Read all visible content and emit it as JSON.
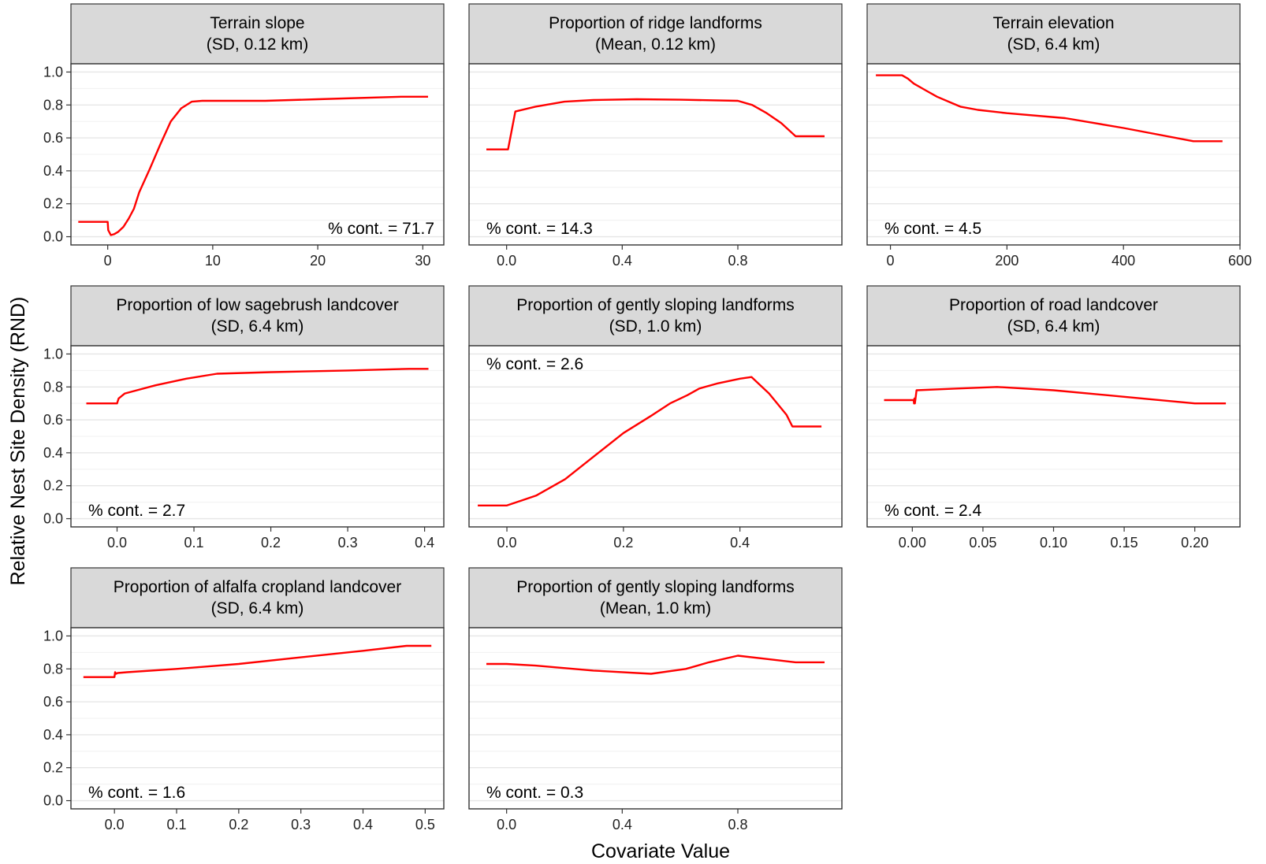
{
  "figure": {
    "ylabel": "Relative Nest Site Density (RND)",
    "xlabel": "Covariate Value"
  },
  "chart_data": [
    {
      "type": "line",
      "title_line1": "Terrain slope",
      "title_line2": "(SD, 0.12 km)",
      "annotation": "% cont. = 71.7",
      "annotation_pos": "bottom-right",
      "xlim": [
        -3.5,
        32
      ],
      "ylim": [
        -0.05,
        1.05
      ],
      "xticks": [
        0,
        10,
        20,
        30
      ],
      "xtick_labels": [
        "0",
        "10",
        "20",
        "30"
      ],
      "yticks": [
        0.0,
        0.2,
        0.4,
        0.6,
        0.8,
        1.0
      ],
      "ytick_labels": [
        "0.0",
        "0.2",
        "0.4",
        "0.6",
        "0.8",
        "1.0"
      ],
      "show_yticks": true,
      "x": [
        -2.8,
        0,
        0.05,
        0.3,
        0.6,
        1.0,
        1.5,
        2.0,
        2.5,
        3.0,
        4.0,
        5.0,
        6.0,
        7.0,
        8.0,
        9.0,
        15.0,
        20.0,
        28.0,
        30.5
      ],
      "y": [
        0.09,
        0.09,
        0.04,
        0.01,
        0.015,
        0.03,
        0.06,
        0.11,
        0.17,
        0.27,
        0.41,
        0.56,
        0.7,
        0.78,
        0.82,
        0.825,
        0.825,
        0.835,
        0.85,
        0.85
      ],
      "color": "#ff0000"
    },
    {
      "type": "line",
      "title_line1": "Proportion of ridge landforms",
      "title_line2": "(Mean, 0.12 km)",
      "annotation": "% cont. = 14.3",
      "annotation_pos": "bottom-left",
      "xlim": [
        -0.13,
        1.16
      ],
      "ylim": [
        -0.05,
        1.05
      ],
      "xticks": [
        0.0,
        0.4,
        0.8
      ],
      "xtick_labels": [
        "0.0",
        "0.4",
        "0.8"
      ],
      "yticks": [
        0.0,
        0.2,
        0.4,
        0.6,
        0.8,
        1.0
      ],
      "ytick_labels": [
        "0.0",
        "0.2",
        "0.4",
        "0.6",
        "0.8",
        "1.0"
      ],
      "show_yticks": false,
      "x": [
        -0.07,
        0.005,
        0.03,
        0.1,
        0.2,
        0.3,
        0.45,
        0.6,
        0.8,
        0.85,
        0.9,
        0.95,
        1.0,
        1.1
      ],
      "y": [
        0.53,
        0.53,
        0.76,
        0.79,
        0.82,
        0.83,
        0.835,
        0.832,
        0.825,
        0.8,
        0.75,
        0.69,
        0.61,
        0.61
      ],
      "color": "#ff0000"
    },
    {
      "type": "line",
      "title_line1": "Terrain elevation",
      "title_line2": "(SD, 6.4 km)",
      "annotation": "% cont. =  4.5",
      "annotation_pos": "bottom-left",
      "xlim": [
        -40,
        600
      ],
      "ylim": [
        -0.05,
        1.05
      ],
      "xticks": [
        0,
        200,
        400,
        600
      ],
      "xtick_labels": [
        "0",
        "200",
        "400",
        "600"
      ],
      "yticks": [
        0.0,
        0.2,
        0.4,
        0.6,
        0.8,
        1.0
      ],
      "ytick_labels": [
        "0.0",
        "0.2",
        "0.4",
        "0.6",
        "0.8",
        "1.0"
      ],
      "show_yticks": false,
      "x": [
        -25,
        20,
        30,
        40,
        60,
        80,
        100,
        120,
        150,
        200,
        300,
        400,
        520,
        570
      ],
      "y": [
        0.98,
        0.98,
        0.96,
        0.93,
        0.89,
        0.85,
        0.82,
        0.79,
        0.77,
        0.75,
        0.72,
        0.66,
        0.58,
        0.58
      ],
      "color": "#ff0000"
    },
    {
      "type": "line",
      "title_line1": "Proportion of low sagebrush landcover",
      "title_line2": "(SD, 6.4 km)",
      "annotation": "% cont. =  2.7",
      "annotation_pos": "bottom-left",
      "xlim": [
        -0.06,
        0.425
      ],
      "ylim": [
        -0.05,
        1.05
      ],
      "xticks": [
        0.0,
        0.1,
        0.2,
        0.3,
        0.4
      ],
      "xtick_labels": [
        "0.0",
        "0.1",
        "0.2",
        "0.3",
        "0.4"
      ],
      "yticks": [
        0.0,
        0.2,
        0.4,
        0.6,
        0.8,
        1.0
      ],
      "ytick_labels": [
        "0.0",
        "0.2",
        "0.4",
        "0.6",
        "0.8",
        "1.0"
      ],
      "show_yticks": true,
      "x": [
        -0.04,
        0.0,
        0.002,
        0.01,
        0.05,
        0.09,
        0.13,
        0.2,
        0.3,
        0.38,
        0.405
      ],
      "y": [
        0.7,
        0.7,
        0.73,
        0.76,
        0.81,
        0.85,
        0.88,
        0.89,
        0.9,
        0.91,
        0.91
      ],
      "color": "#ff0000"
    },
    {
      "type": "line",
      "title_line1": "Proportion of gently sloping landforms",
      "title_line2": "(SD, 1.0 km)",
      "annotation": "% cont. =  2.6",
      "annotation_pos": "top-left",
      "xlim": [
        -0.065,
        0.575
      ],
      "ylim": [
        -0.05,
        1.05
      ],
      "xticks": [
        0.0,
        0.2,
        0.4
      ],
      "xtick_labels": [
        "0.0",
        "0.2",
        "0.4"
      ],
      "yticks": [
        0.0,
        0.2,
        0.4,
        0.6,
        0.8,
        1.0
      ],
      "ytick_labels": [
        "0.0",
        "0.2",
        "0.4",
        "0.6",
        "0.8",
        "1.0"
      ],
      "show_yticks": false,
      "x": [
        -0.05,
        0.0,
        0.05,
        0.1,
        0.15,
        0.2,
        0.25,
        0.28,
        0.31,
        0.33,
        0.36,
        0.4,
        0.42,
        0.45,
        0.48,
        0.49,
        0.54
      ],
      "y": [
        0.08,
        0.08,
        0.14,
        0.24,
        0.38,
        0.52,
        0.63,
        0.7,
        0.75,
        0.79,
        0.82,
        0.85,
        0.86,
        0.76,
        0.63,
        0.56,
        0.56
      ],
      "color": "#ff0000"
    },
    {
      "type": "line",
      "title_line1": "Proportion of road landcover",
      "title_line2": "(SD, 6.4 km)",
      "annotation": "% cont. =  2.4",
      "annotation_pos": "bottom-left",
      "xlim": [
        -0.032,
        0.232
      ],
      "ylim": [
        -0.05,
        1.05
      ],
      "xticks": [
        0.0,
        0.05,
        0.1,
        0.15,
        0.2
      ],
      "xtick_labels": [
        "0.00",
        "0.05",
        "0.10",
        "0.15",
        "0.20"
      ],
      "yticks": [
        0.0,
        0.2,
        0.4,
        0.6,
        0.8,
        1.0
      ],
      "ytick_labels": [
        "0.0",
        "0.2",
        "0.4",
        "0.6",
        "0.8",
        "1.0"
      ],
      "show_yticks": false,
      "x": [
        -0.02,
        0.001,
        0.0012,
        0.0015,
        0.0018,
        0.003,
        0.03,
        0.06,
        0.1,
        0.15,
        0.2,
        0.222
      ],
      "y": [
        0.72,
        0.72,
        0.7,
        0.73,
        0.7,
        0.78,
        0.79,
        0.8,
        0.78,
        0.74,
        0.7,
        0.7
      ],
      "color": "#ff0000"
    },
    {
      "type": "line",
      "title_line1": "Proportion of alfalfa cropland landcover",
      "title_line2": "(SD, 6.4 km)",
      "annotation": "% cont. =  1.6",
      "annotation_pos": "bottom-left",
      "xlim": [
        -0.07,
        0.53
      ],
      "ylim": [
        -0.05,
        1.05
      ],
      "xticks": [
        0.0,
        0.1,
        0.2,
        0.3,
        0.4,
        0.5
      ],
      "xtick_labels": [
        "0.0",
        "0.1",
        "0.2",
        "0.3",
        "0.4",
        "0.5"
      ],
      "yticks": [
        0.0,
        0.2,
        0.4,
        0.6,
        0.8,
        1.0
      ],
      "ytick_labels": [
        "0.0",
        "0.2",
        "0.4",
        "0.6",
        "0.8",
        "1.0"
      ],
      "show_yticks": true,
      "x": [
        -0.05,
        0.0,
        0.001,
        0.003,
        0.005,
        0.02,
        0.1,
        0.2,
        0.3,
        0.4,
        0.47,
        0.51
      ],
      "y": [
        0.75,
        0.75,
        0.78,
        0.77,
        0.775,
        0.78,
        0.8,
        0.83,
        0.87,
        0.91,
        0.94,
        0.94
      ],
      "color": "#ff0000"
    },
    {
      "type": "line",
      "title_line1": "Proportion of gently sloping landforms",
      "title_line2": "(Mean, 1.0 km)",
      "annotation": "% cont. =  0.3",
      "annotation_pos": "bottom-left",
      "xlim": [
        -0.13,
        1.16
      ],
      "ylim": [
        -0.05,
        1.05
      ],
      "xticks": [
        0.0,
        0.4,
        0.8
      ],
      "xtick_labels": [
        "0.0",
        "0.4",
        "0.8"
      ],
      "yticks": [
        0.0,
        0.2,
        0.4,
        0.6,
        0.8,
        1.0
      ],
      "ytick_labels": [
        "0.0",
        "0.2",
        "0.4",
        "0.6",
        "0.8",
        "1.0"
      ],
      "show_yticks": false,
      "x": [
        -0.07,
        0.0,
        0.1,
        0.3,
        0.5,
        0.62,
        0.7,
        0.8,
        0.9,
        1.0,
        1.1
      ],
      "y": [
        0.83,
        0.83,
        0.82,
        0.79,
        0.77,
        0.8,
        0.84,
        0.88,
        0.86,
        0.84,
        0.84
      ],
      "color": "#ff0000"
    }
  ]
}
